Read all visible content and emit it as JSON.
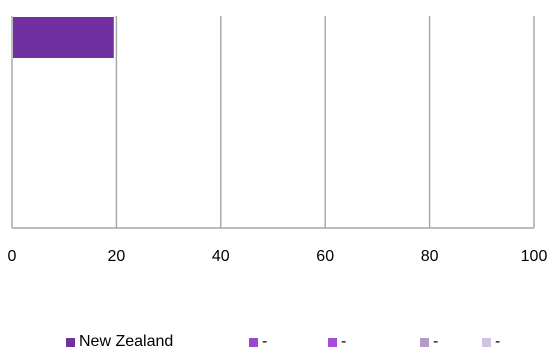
{
  "chart_data": {
    "type": "bar",
    "orientation": "horizontal",
    "series": [
      {
        "name": "New Zealand",
        "values": [
          19.5
        ],
        "color": "#7030a0"
      }
    ],
    "xlim": [
      0,
      100
    ],
    "x_ticks": [
      "0",
      "20",
      "40",
      "60",
      "80",
      "100"
    ],
    "grid": true,
    "legend_position": "bottom",
    "legend": [
      {
        "label": "New Zealand",
        "color": "#7030a0"
      },
      {
        "label": "-",
        "color": "#9c45cf"
      },
      {
        "label": "-",
        "color": "#a64ddc"
      },
      {
        "label": "-",
        "color": "#b39bc8"
      },
      {
        "label": "-",
        "color": "#d2c3e0"
      }
    ]
  }
}
